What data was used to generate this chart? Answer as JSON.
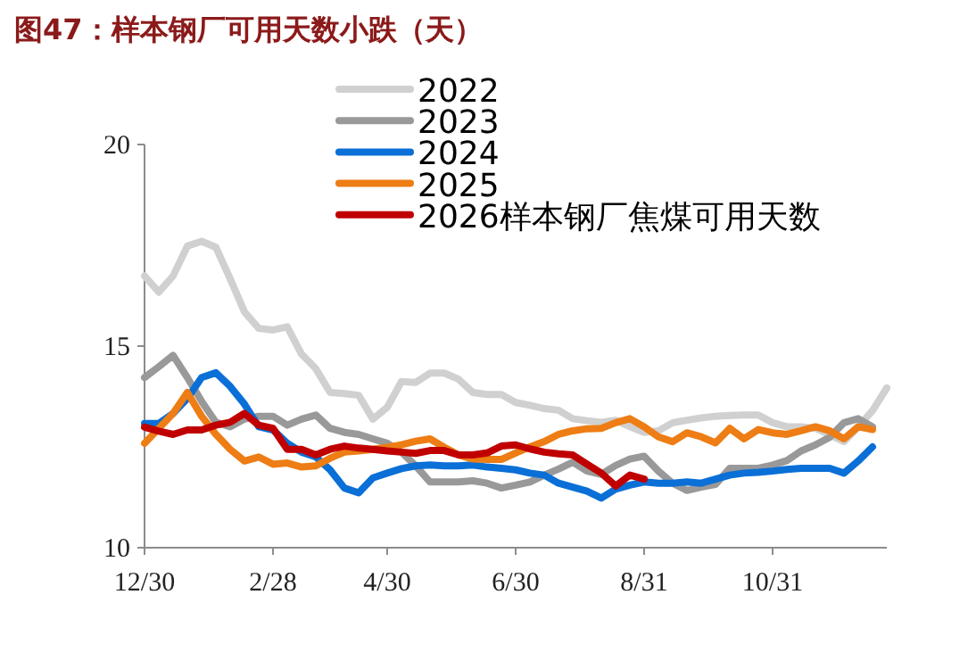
{
  "chart_data": {
    "type": "line",
    "title": "图47：样本钢厂可用天数小跌（天）",
    "categories": [
      "12/30",
      null,
      null,
      null,
      null,
      null,
      null,
      null,
      null,
      "2/28",
      null,
      null,
      null,
      null,
      null,
      null,
      null,
      "4/30",
      null,
      null,
      null,
      null,
      null,
      null,
      null,
      null,
      "6/30",
      null,
      null,
      null,
      null,
      null,
      null,
      null,
      null,
      "8/31",
      null,
      null,
      null,
      null,
      null,
      null,
      null,
      null,
      "10/31",
      null,
      null,
      null,
      null,
      null,
      null,
      null,
      null
    ],
    "series": [
      {
        "name": "2022",
        "color": "#d0d0d0",
        "values": [
          16.74,
          16.34,
          16.74,
          17.48,
          17.6,
          17.45,
          16.67,
          15.85,
          15.44,
          15.4,
          15.48,
          14.8,
          14.44,
          13.85,
          13.82,
          13.78,
          13.19,
          13.48,
          14.12,
          14.1,
          14.33,
          14.33,
          14.18,
          13.85,
          13.8,
          13.8,
          13.6,
          13.53,
          13.45,
          13.41,
          13.2,
          13.15,
          13.11,
          13.16,
          13.0,
          12.86,
          12.9,
          13.1,
          13.16,
          13.22,
          13.26,
          13.28,
          13.29,
          13.29,
          13.1,
          13.0,
          13.0,
          12.96,
          12.8,
          12.63,
          13.0,
          13.4,
          13.96
        ]
      },
      {
        "name": "2023",
        "color": "#999999",
        "values": [
          14.22,
          14.49,
          14.77,
          14.22,
          13.63,
          13.11,
          13.0,
          13.19,
          13.26,
          13.26,
          13.04,
          13.19,
          13.29,
          12.96,
          12.86,
          12.81,
          12.7,
          12.59,
          12.37,
          12.03,
          11.63,
          11.63,
          11.63,
          11.66,
          11.6,
          11.48,
          11.55,
          11.63,
          11.8,
          11.95,
          12.12,
          11.9,
          11.82,
          12.04,
          12.2,
          12.27,
          11.9,
          11.6,
          11.42,
          11.5,
          11.57,
          11.97,
          11.97,
          11.97,
          12.05,
          12.16,
          12.4,
          12.55,
          12.74,
          13.1,
          13.2,
          13.0,
          null
        ]
      },
      {
        "name": "2024",
        "color": "#0a6fd6",
        "values": [
          13.08,
          13.08,
          13.33,
          13.7,
          14.22,
          14.34,
          14.0,
          13.56,
          13.0,
          12.92,
          12.59,
          12.37,
          12.25,
          11.93,
          11.48,
          11.36,
          11.73,
          11.85,
          11.96,
          12.03,
          12.05,
          12.03,
          12.03,
          12.05,
          12.0,
          11.97,
          11.93,
          11.85,
          11.8,
          11.6,
          11.5,
          11.4,
          11.23,
          11.45,
          11.55,
          11.63,
          11.6,
          11.6,
          11.63,
          11.6,
          11.7,
          11.8,
          11.85,
          11.87,
          11.9,
          11.94,
          11.97,
          11.97,
          11.97,
          11.85,
          12.15,
          12.5,
          null
        ]
      },
      {
        "name": "2025",
        "color": "#ed7d14",
        "values": [
          12.59,
          12.96,
          13.33,
          13.85,
          13.26,
          12.81,
          12.44,
          12.15,
          12.25,
          12.07,
          12.1,
          12.0,
          12.03,
          12.22,
          12.37,
          12.4,
          12.44,
          12.49,
          12.55,
          12.64,
          12.7,
          12.49,
          12.3,
          12.2,
          12.19,
          12.19,
          12.35,
          12.5,
          12.63,
          12.81,
          12.9,
          12.95,
          12.96,
          13.1,
          13.2,
          13.0,
          12.75,
          12.63,
          12.85,
          12.75,
          12.6,
          12.96,
          12.7,
          12.93,
          12.85,
          12.81,
          12.9,
          13.0,
          12.9,
          12.7,
          13.0,
          12.93,
          null
        ]
      },
      {
        "name": "2026样本钢厂焦煤可用天数",
        "color": "#c00000",
        "values": [
          12.99,
          12.89,
          12.81,
          12.92,
          12.92,
          13.04,
          13.11,
          13.33,
          13.04,
          12.96,
          12.44,
          12.44,
          12.3,
          12.44,
          12.52,
          12.47,
          12.44,
          12.4,
          12.37,
          12.34,
          12.41,
          12.41,
          12.3,
          12.3,
          12.35,
          12.52,
          12.55,
          12.45,
          12.37,
          12.33,
          12.3,
          12.07,
          11.85,
          11.53,
          11.8,
          11.7,
          null,
          null,
          null,
          null,
          null,
          null,
          null,
          null,
          null,
          null,
          null,
          null,
          null,
          null,
          null,
          null,
          null
        ]
      }
    ],
    "ylim": [
      10,
      20
    ],
    "yticks": [
      10,
      15,
      20
    ],
    "legend": "top"
  }
}
